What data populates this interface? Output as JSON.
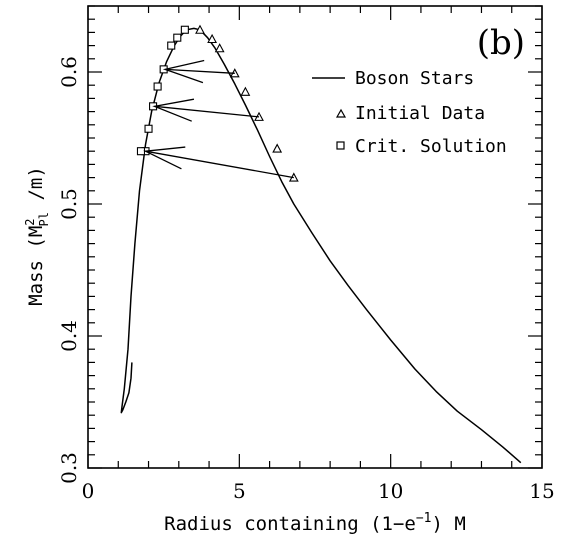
{
  "chart_data": {
    "type": "line",
    "panel_label": "(b)",
    "xlabel": {
      "prefix": "Radius containing (1−e",
      "exp": "−1",
      "suffix": ") M"
    },
    "ylabel": {
      "prefix": "Mass (M",
      "sup": "2",
      "sub": "Pl",
      "suffix": " /m)"
    },
    "xlim": [
      0,
      15
    ],
    "ylim": [
      0.3,
      0.65
    ],
    "x_ticks": [
      0,
      5,
      10,
      15
    ],
    "x_tick_labels": [
      "0",
      "5",
      "10",
      "15"
    ],
    "y_ticks": [
      0.3,
      0.4,
      0.5,
      0.6
    ],
    "y_tick_labels": [
      "0.3",
      "0.4",
      "0.5",
      "0.6"
    ],
    "legend": {
      "position": "top-right",
      "entries": [
        {
          "label": "Boson Stars",
          "marker": "line"
        },
        {
          "label": "Initial Data",
          "marker": "triangle"
        },
        {
          "label": "Crit. Solution",
          "marker": "square"
        }
      ]
    },
    "series": [
      {
        "name": "Boson Stars",
        "kind": "line",
        "x": [
          1.45,
          1.42,
          1.35,
          1.25,
          1.15,
          1.1,
          1.12,
          1.2,
          1.32,
          1.42,
          1.55,
          1.7,
          1.9,
          2.1,
          2.35,
          2.6,
          2.85,
          3.05,
          3.25,
          3.5,
          3.7,
          3.95,
          4.2,
          4.5,
          4.85,
          5.2,
          5.6,
          6.0,
          6.4,
          6.8,
          7.4,
          8.0,
          8.6,
          9.2,
          10.0,
          10.8,
          11.5,
          12.2,
          13.0,
          13.7,
          14.3
        ],
        "y": [
          0.38,
          0.368,
          0.357,
          0.35,
          0.344,
          0.342,
          0.346,
          0.36,
          0.39,
          0.43,
          0.47,
          0.51,
          0.545,
          0.57,
          0.592,
          0.608,
          0.62,
          0.627,
          0.632,
          0.633,
          0.632,
          0.626,
          0.618,
          0.606,
          0.591,
          0.575,
          0.556,
          0.536,
          0.517,
          0.5,
          0.478,
          0.457,
          0.438,
          0.42,
          0.397,
          0.375,
          0.358,
          0.343,
          0.329,
          0.316,
          0.304
        ]
      },
      {
        "name": "Initial Data",
        "kind": "markers",
        "marker": "triangle",
        "x": [
          3.7,
          4.1,
          4.35,
          4.85,
          5.2,
          5.65,
          6.25,
          6.8
        ],
        "y": [
          0.632,
          0.625,
          0.618,
          0.599,
          0.585,
          0.566,
          0.542,
          0.52
        ]
      },
      {
        "name": "Crit. Solution",
        "kind": "markers",
        "marker": "square",
        "x": [
          3.2,
          2.95,
          2.75,
          2.5,
          2.3,
          2.15,
          2.0,
          1.9,
          1.75
        ],
        "y": [
          0.632,
          0.626,
          0.62,
          0.602,
          0.589,
          0.574,
          0.557,
          0.54,
          0.54
        ]
      }
    ],
    "arrows": [
      {
        "from": [
          4.85,
          0.599
        ],
        "to": [
          2.55,
          0.602
        ]
      },
      {
        "from": [
          5.65,
          0.566
        ],
        "to": [
          2.2,
          0.574
        ]
      },
      {
        "from": [
          6.8,
          0.52
        ],
        "to": [
          1.9,
          0.54
        ]
      }
    ]
  }
}
